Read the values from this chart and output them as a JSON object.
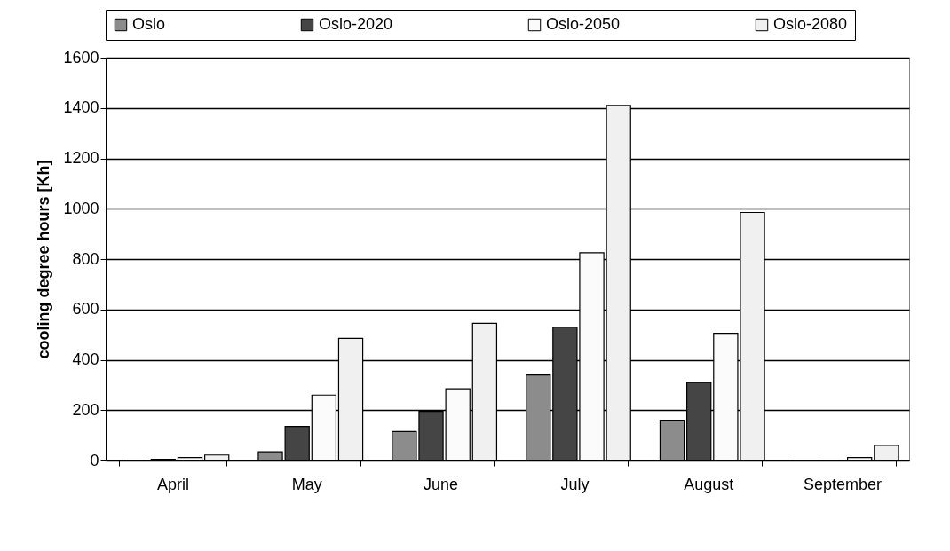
{
  "chart_data": {
    "type": "bar",
    "ylabel": "cooling degree hours [Kh]",
    "categories": [
      "April",
      "May",
      "June",
      "July",
      "August",
      "September"
    ],
    "series": [
      {
        "name": "Oslo",
        "color": "#8c8c8c",
        "values": [
          0,
          35,
          115,
          340,
          160,
          0
        ]
      },
      {
        "name": "Oslo-2020",
        "color": "#454545",
        "values": [
          5,
          135,
          195,
          530,
          310,
          0
        ]
      },
      {
        "name": "Oslo-2050",
        "color": "#fbfbfb",
        "values": [
          12,
          260,
          285,
          825,
          505,
          12
        ]
      },
      {
        "name": "Oslo-2080",
        "color": "#f0f0f0",
        "values": [
          22,
          485,
          545,
          1410,
          985,
          60
        ]
      }
    ],
    "ylim": [
      0,
      1600
    ],
    "yticks": [
      0,
      200,
      400,
      600,
      800,
      1000,
      1200,
      1400,
      1600
    ],
    "grid": "y",
    "legend": "top"
  }
}
